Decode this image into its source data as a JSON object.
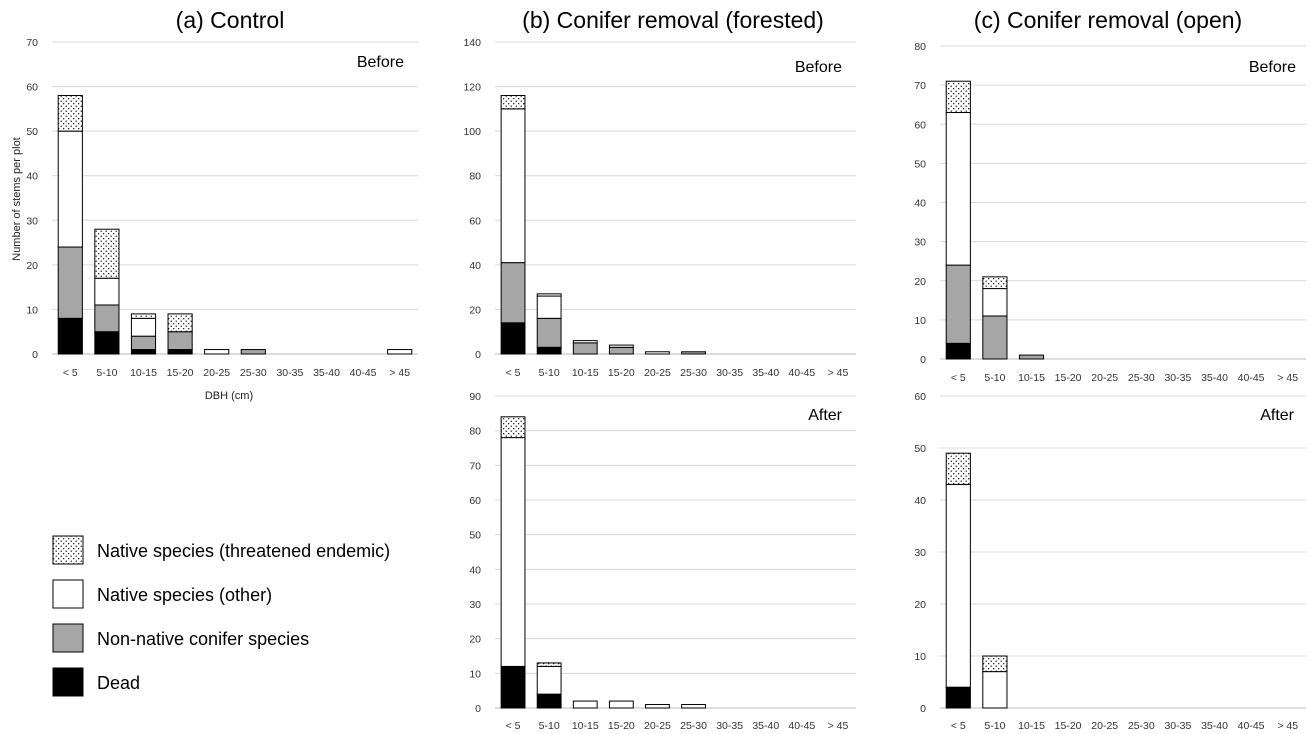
{
  "legend": [
    {
      "key": "threatened",
      "label": "Native species (threatened endemic)"
    },
    {
      "key": "other",
      "label": "Native species (other)"
    },
    {
      "key": "conifer",
      "label": "Non-native conifer species"
    },
    {
      "key": "dead",
      "label": "Dead"
    }
  ],
  "colors": {
    "dead": "#000000",
    "conifer": "#a6a6a6",
    "other": "#ffffff",
    "threatened": "dotted"
  },
  "chart_data": [
    {
      "type": "bar",
      "stacked": true,
      "title": "(a) Control",
      "subtitle": "Before",
      "xlabel": "DBH (cm)",
      "ylabel": "Number of stems per plot",
      "ylim": [
        0,
        70
      ],
      "yticks": [
        0,
        10,
        20,
        30,
        40,
        50,
        60,
        70
      ],
      "categories": [
        "< 5",
        "5-10",
        "10-15",
        "15-20",
        "20-25",
        "25-30",
        "30-35",
        "35-40",
        "40-45",
        "> 45"
      ],
      "series": [
        {
          "name": "Dead",
          "key": "dead",
          "values": [
            8,
            5,
            1,
            1,
            0,
            0,
            0,
            0,
            0,
            0
          ]
        },
        {
          "name": "Non-native conifer species",
          "key": "conifer",
          "values": [
            16,
            6,
            3,
            4,
            0,
            1,
            0,
            0,
            0,
            0
          ]
        },
        {
          "name": "Native species (other)",
          "key": "other",
          "values": [
            26,
            6,
            4,
            0,
            1,
            0,
            0,
            0,
            0,
            1
          ]
        },
        {
          "name": "Native species (threatened endemic)",
          "key": "threatened",
          "values": [
            8,
            11,
            1,
            4,
            0,
            0,
            0,
            0,
            0,
            0
          ]
        }
      ]
    },
    {
      "type": "bar",
      "stacked": true,
      "title": "(b) Conifer removal (forested)",
      "subtitle": "Before",
      "ylim": [
        0,
        140
      ],
      "yticks": [
        0,
        20,
        40,
        60,
        80,
        100,
        120,
        140
      ],
      "categories": [
        "< 5",
        "5-10",
        "10-15",
        "15-20",
        "20-25",
        "25-30",
        "30-35",
        "35-40",
        "40-45",
        "> 45"
      ],
      "series": [
        {
          "name": "Dead",
          "key": "dead",
          "values": [
            14,
            3,
            0,
            0,
            0,
            0,
            0,
            0,
            0,
            0
          ]
        },
        {
          "name": "Non-native conifer species",
          "key": "conifer",
          "values": [
            27,
            13,
            5,
            3,
            0,
            1,
            0,
            0,
            0,
            0
          ]
        },
        {
          "name": "Native species (other)",
          "key": "other",
          "values": [
            69,
            10,
            1,
            1,
            1,
            0,
            0,
            0,
            0,
            0
          ]
        },
        {
          "name": "Native species (threatened endemic)",
          "key": "threatened",
          "values": [
            6,
            1,
            0,
            0,
            0,
            0,
            0,
            0,
            0,
            0
          ]
        }
      ]
    },
    {
      "type": "bar",
      "stacked": true,
      "title": "",
      "subtitle": "After",
      "ylim": [
        0,
        90
      ],
      "yticks": [
        0,
        10,
        20,
        30,
        40,
        50,
        60,
        70,
        80,
        90
      ],
      "categories": [
        "< 5",
        "5-10",
        "10-15",
        "15-20",
        "20-25",
        "25-30",
        "30-35",
        "35-40",
        "40-45",
        "> 45"
      ],
      "series": [
        {
          "name": "Dead",
          "key": "dead",
          "values": [
            12,
            4,
            0,
            0,
            0,
            0,
            0,
            0,
            0,
            0
          ]
        },
        {
          "name": "Non-native conifer species",
          "key": "conifer",
          "values": [
            0,
            0,
            0,
            0,
            0,
            0,
            0,
            0,
            0,
            0
          ]
        },
        {
          "name": "Native species (other)",
          "key": "other",
          "values": [
            66,
            8,
            2,
            2,
            1,
            1,
            0,
            0,
            0,
            0
          ]
        },
        {
          "name": "Native species (threatened endemic)",
          "key": "threatened",
          "values": [
            6,
            1,
            0,
            0,
            0,
            0,
            0,
            0,
            0,
            0
          ]
        }
      ]
    },
    {
      "type": "bar",
      "stacked": true,
      "title": "(c) Conifer removal (open)",
      "subtitle": "Before",
      "ylim": [
        0,
        80
      ],
      "yticks": [
        0,
        10,
        20,
        30,
        40,
        50,
        60,
        70,
        80
      ],
      "categories": [
        "< 5",
        "5-10",
        "10-15",
        "15-20",
        "20-25",
        "25-30",
        "30-35",
        "35-40",
        "40-45",
        "> 45"
      ],
      "series": [
        {
          "name": "Dead",
          "key": "dead",
          "values": [
            4,
            0,
            0,
            0,
            0,
            0,
            0,
            0,
            0,
            0
          ]
        },
        {
          "name": "Non-native conifer species",
          "key": "conifer",
          "values": [
            20,
            11,
            1,
            0,
            0,
            0,
            0,
            0,
            0,
            0
          ]
        },
        {
          "name": "Native species (other)",
          "key": "other",
          "values": [
            39,
            7,
            0,
            0,
            0,
            0,
            0,
            0,
            0,
            0
          ]
        },
        {
          "name": "Native species (threatened endemic)",
          "key": "threatened",
          "values": [
            8,
            3,
            0,
            0,
            0,
            0,
            0,
            0,
            0,
            0
          ]
        }
      ]
    },
    {
      "type": "bar",
      "stacked": true,
      "title": "",
      "subtitle": "After",
      "ylim": [
        0,
        60
      ],
      "yticks": [
        0,
        10,
        20,
        30,
        40,
        50,
        60
      ],
      "categories": [
        "< 5",
        "5-10",
        "10-15",
        "15-20",
        "20-25",
        "25-30",
        "30-35",
        "35-40",
        "40-45",
        "> 45"
      ],
      "series": [
        {
          "name": "Dead",
          "key": "dead",
          "values": [
            4,
            0,
            0,
            0,
            0,
            0,
            0,
            0,
            0,
            0
          ]
        },
        {
          "name": "Non-native conifer species",
          "key": "conifer",
          "values": [
            0,
            0,
            0,
            0,
            0,
            0,
            0,
            0,
            0,
            0
          ]
        },
        {
          "name": "Native species (other)",
          "key": "other",
          "values": [
            39,
            7,
            0,
            0,
            0,
            0,
            0,
            0,
            0,
            0
          ]
        },
        {
          "name": "Native species (threatened endemic)",
          "key": "threatened",
          "values": [
            6,
            3,
            0,
            0,
            0,
            0,
            0,
            0,
            0,
            0
          ]
        }
      ]
    }
  ]
}
